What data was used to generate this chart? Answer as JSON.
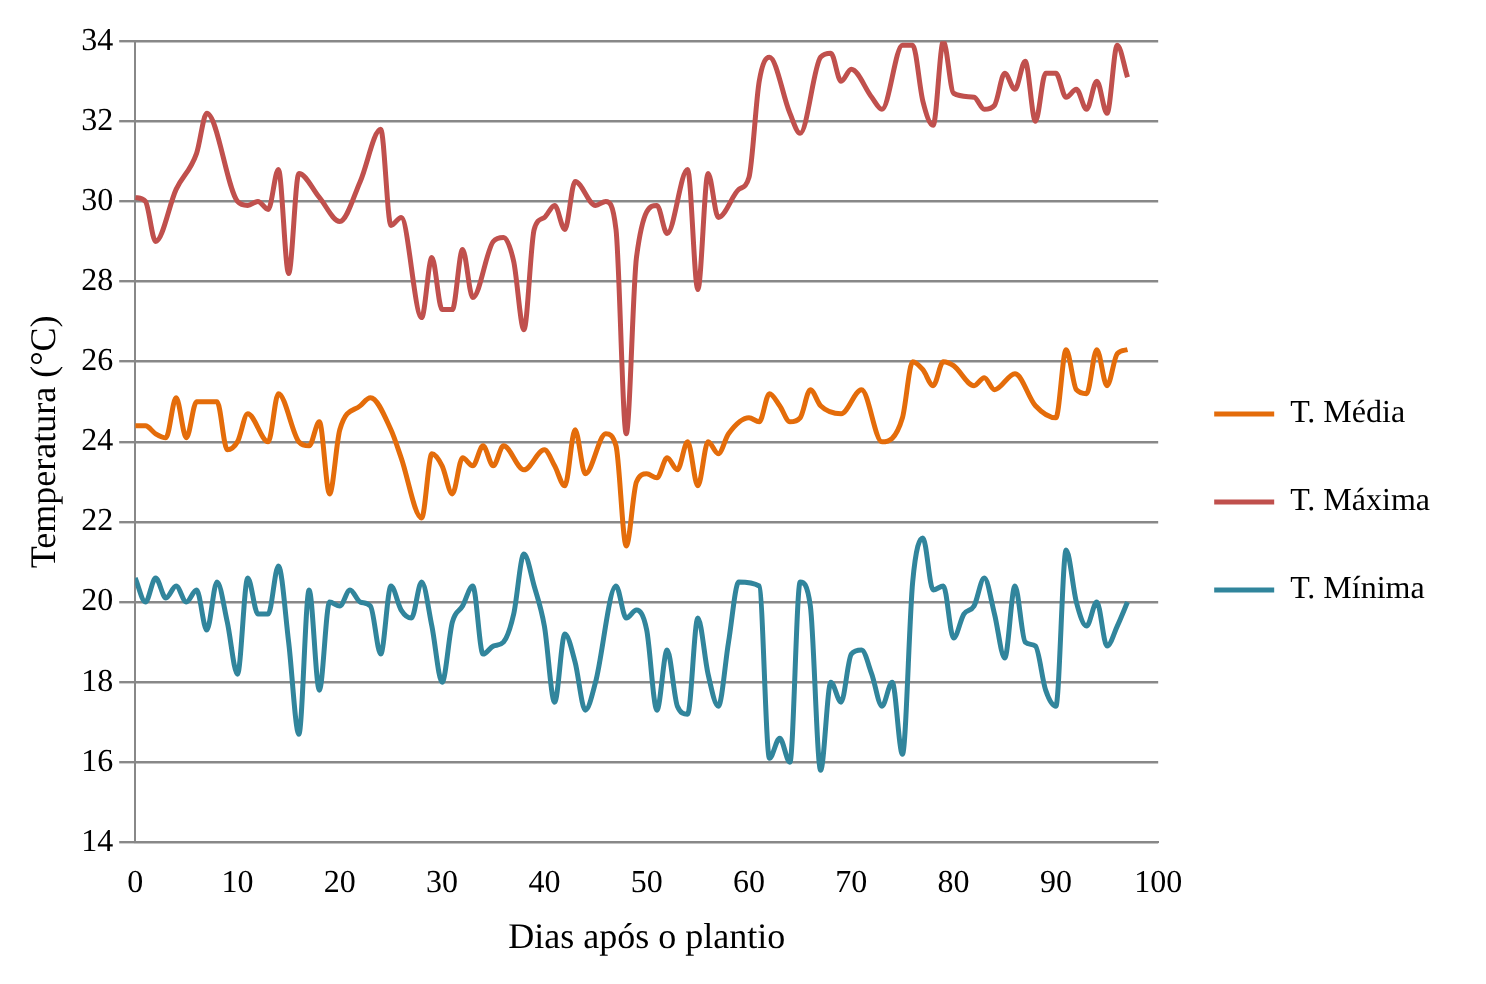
{
  "chart_data": {
    "type": "line",
    "xlabel": "Dias após o plantio",
    "ylabel": "Temperatura (°C)",
    "xlim": [
      0,
      100
    ],
    "xticks": [
      0,
      10,
      20,
      30,
      40,
      50,
      60,
      70,
      80,
      90,
      100
    ],
    "ylim": [
      14,
      34
    ],
    "yticks": [
      14,
      16,
      18,
      20,
      22,
      24,
      26,
      28,
      30,
      32,
      34
    ],
    "grid": "y",
    "legend": "right",
    "marker": "none",
    "line_style": "solid",
    "series": [
      {
        "name": "T. Média",
        "color": "#e46c0a",
        "x": [
          0,
          1,
          2,
          3,
          4,
          5,
          6,
          8,
          9,
          10,
          11,
          13,
          14,
          16,
          17,
          18,
          19,
          20,
          22,
          23,
          25,
          26,
          28,
          29,
          30,
          31,
          32,
          33,
          34,
          35,
          36,
          38,
          40,
          41,
          42,
          43,
          44,
          46,
          47,
          48,
          49,
          50,
          51,
          52,
          53,
          54,
          55,
          56,
          57,
          58,
          60,
          61,
          62,
          63,
          64,
          65,
          66,
          67,
          69,
          71,
          73,
          75,
          76,
          77,
          78,
          79,
          80,
          82,
          83,
          84,
          86,
          88,
          90,
          91,
          92,
          93,
          94,
          95,
          96,
          97
        ],
        "values": [
          24.4,
          24.4,
          24.2,
          24.1,
          25.1,
          24.1,
          25.0,
          25.0,
          23.8,
          24.0,
          24.7,
          24.0,
          25.2,
          24.0,
          23.9,
          24.5,
          22.7,
          24.3,
          24.9,
          25.1,
          24.3,
          23.6,
          22.1,
          23.7,
          23.4,
          22.7,
          23.6,
          23.4,
          23.9,
          23.4,
          23.9,
          23.3,
          23.8,
          23.4,
          22.9,
          24.3,
          23.2,
          24.2,
          23.9,
          21.4,
          23.0,
          23.2,
          23.1,
          23.6,
          23.3,
          24.0,
          22.9,
          24.0,
          23.7,
          24.2,
          24.6,
          24.5,
          25.2,
          24.9,
          24.5,
          24.6,
          25.3,
          24.9,
          24.7,
          25.3,
          24.0,
          24.6,
          26.0,
          25.8,
          25.4,
          26.0,
          25.9,
          25.4,
          25.6,
          25.3,
          25.7,
          24.9,
          24.6,
          26.3,
          25.3,
          25.2,
          26.3,
          25.4,
          26.2,
          26.3
        ]
      },
      {
        "name": "T. Máxima",
        "color": "#c0504d",
        "x": [
          0,
          1,
          2,
          4,
          6,
          7,
          10,
          11,
          12,
          13,
          14,
          15,
          16,
          18,
          20,
          22,
          24,
          25,
          26,
          28,
          29,
          30,
          31,
          32,
          33,
          35,
          36,
          37,
          38,
          39,
          40,
          41,
          42,
          43,
          45,
          46,
          47,
          48,
          49,
          51,
          52,
          54,
          55,
          56,
          57,
          59,
          60,
          61,
          62,
          64,
          65,
          67,
          68,
          69,
          70,
          72,
          73,
          75,
          76,
          77,
          78,
          79,
          80,
          82,
          83,
          84,
          85,
          86,
          87,
          88,
          89,
          90,
          91,
          92,
          93,
          94,
          95,
          96,
          97
        ],
        "values": [
          30.1,
          30.0,
          29.0,
          30.3,
          31.2,
          32.2,
          30.0,
          29.9,
          30.0,
          29.8,
          30.8,
          28.2,
          30.7,
          30.1,
          29.5,
          30.5,
          31.8,
          29.4,
          29.6,
          27.1,
          28.6,
          27.3,
          27.3,
          28.8,
          27.6,
          29.0,
          29.1,
          28.5,
          26.8,
          29.3,
          29.6,
          29.9,
          29.3,
          30.5,
          29.9,
          30.0,
          29.3,
          24.2,
          28.6,
          29.9,
          29.2,
          30.8,
          27.8,
          30.7,
          29.6,
          30.3,
          30.6,
          33.0,
          33.6,
          32.2,
          31.7,
          33.6,
          33.7,
          33.0,
          33.3,
          32.6,
          32.3,
          33.9,
          33.9,
          32.5,
          31.9,
          34.0,
          32.7,
          32.6,
          32.3,
          32.4,
          33.2,
          32.8,
          33.5,
          32.0,
          33.2,
          33.2,
          32.6,
          32.8,
          32.3,
          33.0,
          32.2,
          33.9,
          33.1
        ]
      },
      {
        "name": "T. Mínima",
        "color": "#31859c",
        "x": [
          0,
          1,
          2,
          3,
          4,
          5,
          6,
          7,
          8,
          9,
          10,
          11,
          12,
          13,
          14,
          15,
          16,
          17,
          18,
          19,
          20,
          21,
          22,
          23,
          24,
          25,
          26,
          27,
          28,
          29,
          30,
          31,
          32,
          33,
          34,
          35,
          36,
          37,
          38,
          39,
          40,
          41,
          42,
          43,
          44,
          45,
          47,
          48,
          49,
          50,
          51,
          52,
          53,
          54,
          55,
          56,
          57,
          58,
          59,
          61,
          62,
          63,
          64,
          65,
          66,
          67,
          68,
          69,
          70,
          71,
          72,
          73,
          74,
          75,
          76,
          77,
          78,
          79,
          80,
          81,
          82,
          83,
          84,
          85,
          86,
          87,
          88,
          89,
          90,
          91,
          92,
          93,
          94,
          95,
          96,
          97
        ],
        "values": [
          20.6,
          20.0,
          20.6,
          20.1,
          20.4,
          20.0,
          20.3,
          19.3,
          20.5,
          19.5,
          18.2,
          20.6,
          19.7,
          19.7,
          20.9,
          19.0,
          16.7,
          20.3,
          17.8,
          20.0,
          19.9,
          20.3,
          20.0,
          19.9,
          18.7,
          20.4,
          19.8,
          19.6,
          20.5,
          19.4,
          18.0,
          19.5,
          19.9,
          20.4,
          18.7,
          18.9,
          19.0,
          19.7,
          21.2,
          20.4,
          19.4,
          17.5,
          19.2,
          18.5,
          17.3,
          18.0,
          20.4,
          19.6,
          19.8,
          19.3,
          17.3,
          18.8,
          17.4,
          17.2,
          19.6,
          18.2,
          17.4,
          19.0,
          20.5,
          20.4,
          16.1,
          16.6,
          16.0,
          20.5,
          19.9,
          15.8,
          18.0,
          17.5,
          18.7,
          18.8,
          18.2,
          17.4,
          18.0,
          16.2,
          20.5,
          21.6,
          20.3,
          20.4,
          19.1,
          19.7,
          19.9,
          20.6,
          19.7,
          18.6,
          20.4,
          19.0,
          18.9,
          17.8,
          17.4,
          21.3,
          20.0,
          19.4,
          20.0,
          18.9,
          19.4,
          20.0
        ]
      }
    ]
  }
}
